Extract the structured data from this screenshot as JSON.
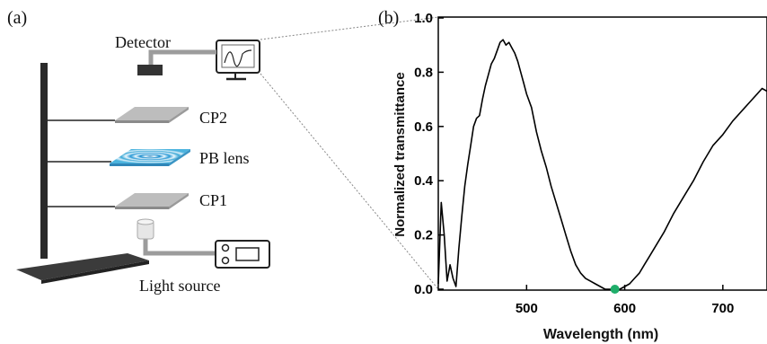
{
  "panel_a": {
    "label": "(a)",
    "labels": {
      "detector": "Detector",
      "cp2": "CP2",
      "pb_lens": "PB lens",
      "cp1": "CP1",
      "light_source": "Light source"
    },
    "colors": {
      "stand": "#2a2a2a",
      "plate": "#b9b9b9",
      "lens": "#3aa7d6",
      "cable": "#9c9c9c"
    }
  },
  "panel_b": {
    "label": "(b)"
  },
  "chart_data": {
    "type": "line",
    "title": "",
    "xlabel": "Wavelength (nm)",
    "ylabel": "Normalized transmittance",
    "xlim": [
      410,
      745
    ],
    "ylim": [
      0,
      1.0
    ],
    "xticks": [
      500,
      600,
      700
    ],
    "yticks": [
      0.0,
      0.2,
      0.4,
      0.6,
      0.8,
      1.0
    ],
    "xtick_labels": [
      "500",
      "600",
      "700"
    ],
    "ytick_labels": [
      "0.0",
      "0.2",
      "0.4",
      "0.6",
      "0.8",
      "1.0"
    ],
    "grid": false,
    "line_color": "#000000",
    "marker": {
      "x": 590,
      "y": 0.0,
      "color": "#1fae6a"
    },
    "series": [
      {
        "x": [
          410,
          413,
          416,
          419,
          422,
          425,
          428,
          431,
          434,
          437,
          440,
          443,
          446,
          449,
          452,
          455,
          458,
          461,
          464,
          467,
          470,
          473,
          476,
          479,
          482,
          485,
          488,
          491,
          494,
          497,
          500,
          505,
          510,
          515,
          520,
          525,
          530,
          535,
          540,
          545,
          550,
          555,
          560,
          565,
          570,
          575,
          580,
          585,
          590,
          595,
          600,
          605,
          610,
          615,
          620,
          625,
          630,
          640,
          650,
          660,
          670,
          680,
          690,
          700,
          710,
          720,
          730,
          735,
          740,
          745
        ],
        "y": [
          0.02,
          0.32,
          0.2,
          0.03,
          0.09,
          0.04,
          0.01,
          0.15,
          0.27,
          0.38,
          0.46,
          0.53,
          0.6,
          0.63,
          0.64,
          0.7,
          0.75,
          0.79,
          0.83,
          0.85,
          0.88,
          0.91,
          0.92,
          0.9,
          0.91,
          0.89,
          0.87,
          0.84,
          0.8,
          0.76,
          0.72,
          0.67,
          0.58,
          0.51,
          0.45,
          0.38,
          0.32,
          0.26,
          0.2,
          0.14,
          0.09,
          0.06,
          0.04,
          0.03,
          0.02,
          0.01,
          0.0,
          0.0,
          0.0,
          0.0,
          0.01,
          0.02,
          0.04,
          0.06,
          0.09,
          0.12,
          0.15,
          0.21,
          0.28,
          0.34,
          0.4,
          0.47,
          0.53,
          0.57,
          0.62,
          0.66,
          0.7,
          0.72,
          0.74,
          0.73
        ]
      }
    ]
  }
}
